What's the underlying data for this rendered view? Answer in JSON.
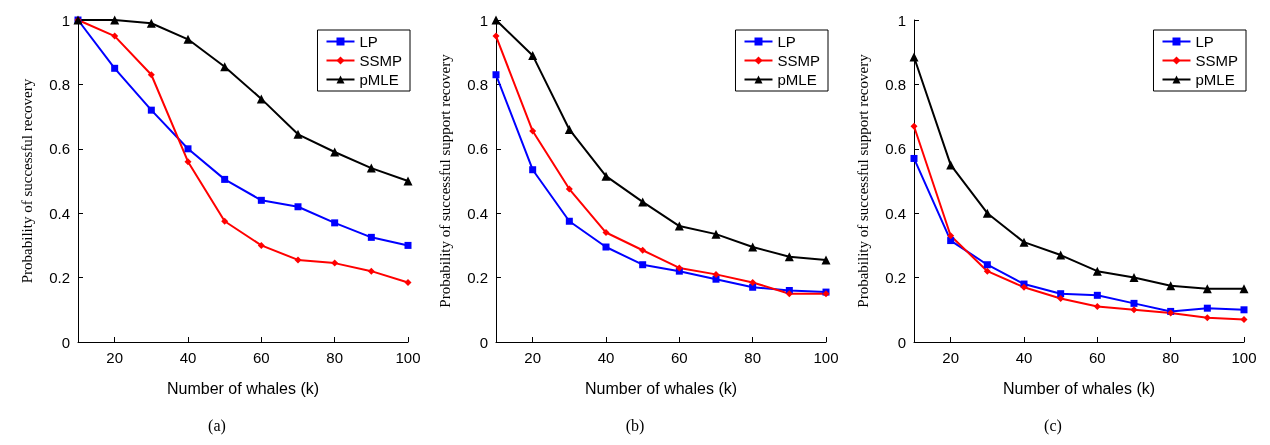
{
  "chart_data": [
    {
      "type": "line",
      "xlabel": "Number of whales (k)",
      "ylabel": "Probability of successful recovery",
      "annotations": [
        "(a)"
      ],
      "x": [
        10,
        20,
        30,
        40,
        50,
        60,
        70,
        80,
        90,
        100
      ],
      "xlim": [
        10,
        100
      ],
      "xticks": [
        20,
        40,
        60,
        80,
        100
      ],
      "ylim": [
        0,
        1
      ],
      "yticks": [
        0,
        0.2,
        0.4,
        0.6,
        0.8,
        1
      ],
      "grid": false,
      "legend": "top right",
      "series": [
        {
          "name": "LP",
          "color": "#0000ff",
          "marker": "square",
          "values": [
            1,
            0.85,
            0.72,
            0.6,
            0.505,
            0.44,
            0.42,
            0.37,
            0.325,
            0.3
          ]
        },
        {
          "name": "SSMP",
          "color": "#ff0000",
          "marker": "diamond",
          "values": [
            1,
            0.95,
            0.83,
            0.56,
            0.375,
            0.3,
            0.255,
            0.245,
            0.22,
            0.185
          ]
        },
        {
          "name": "pMLE",
          "color": "#000000",
          "marker": "triangle",
          "values": [
            1,
            1,
            0.99,
            0.94,
            0.855,
            0.755,
            0.645,
            0.59,
            0.54,
            0.5
          ]
        }
      ]
    },
    {
      "type": "line",
      "xlabel": "Number of whales (k)",
      "ylabel": "Probability of successful support recovery",
      "annotations": [
        "(b)"
      ],
      "x": [
        10,
        20,
        30,
        40,
        50,
        60,
        70,
        80,
        90,
        100
      ],
      "xlim": [
        10,
        100
      ],
      "xticks": [
        20,
        40,
        60,
        80,
        100
      ],
      "ylim": [
        0,
        1
      ],
      "yticks": [
        0,
        0.2,
        0.4,
        0.6,
        0.8,
        1
      ],
      "grid": false,
      "legend": "top right",
      "series": [
        {
          "name": "LP",
          "color": "#0000ff",
          "marker": "square",
          "values": [
            0.83,
            0.535,
            0.375,
            0.295,
            0.24,
            0.22,
            0.195,
            0.17,
            0.16,
            0.155
          ]
        },
        {
          "name": "SSMP",
          "color": "#ff0000",
          "marker": "diamond",
          "values": [
            0.95,
            0.655,
            0.475,
            0.34,
            0.285,
            0.23,
            0.21,
            0.185,
            0.15,
            0.15
          ]
        },
        {
          "name": "pMLE",
          "color": "#000000",
          "marker": "triangle",
          "values": [
            1,
            0.89,
            0.66,
            0.515,
            0.435,
            0.36,
            0.335,
            0.295,
            0.265,
            0.255
          ]
        }
      ]
    },
    {
      "type": "line",
      "xlabel": "Number of whales (k)",
      "ylabel": "Probability of successful support recovery",
      "annotations": [
        "(c)"
      ],
      "x": [
        10,
        20,
        30,
        40,
        50,
        60,
        70,
        80,
        90,
        100
      ],
      "xlim": [
        10,
        100
      ],
      "xticks": [
        20,
        40,
        60,
        80,
        100
      ],
      "ylim": [
        0,
        1
      ],
      "yticks": [
        0,
        0.2,
        0.4,
        0.6,
        0.8,
        1
      ],
      "grid": false,
      "legend": "top right",
      "series": [
        {
          "name": "LP",
          "color": "#0000ff",
          "marker": "square",
          "values": [
            0.57,
            0.315,
            0.24,
            0.18,
            0.15,
            0.145,
            0.12,
            0.095,
            0.105,
            0.1
          ]
        },
        {
          "name": "SSMP",
          "color": "#ff0000",
          "marker": "diamond",
          "values": [
            0.67,
            0.33,
            0.22,
            0.17,
            0.135,
            0.11,
            0.1,
            0.09,
            0.075,
            0.07
          ]
        },
        {
          "name": "pMLE",
          "color": "#000000",
          "marker": "triangle",
          "values": [
            0.885,
            0.55,
            0.4,
            0.31,
            0.27,
            0.22,
            0.2,
            0.175,
            0.165,
            0.165
          ]
        }
      ]
    }
  ]
}
